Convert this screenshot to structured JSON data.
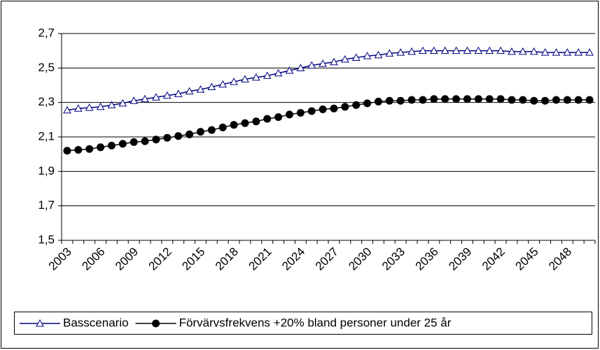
{
  "chart_data": {
    "type": "line",
    "categories": [
      "2003",
      null,
      null,
      "2006",
      null,
      null,
      "2009",
      null,
      null,
      "2012",
      null,
      null,
      "2015",
      null,
      null,
      "2018",
      null,
      null,
      "2021",
      null,
      null,
      "2024",
      null,
      null,
      "2027",
      null,
      null,
      "2030",
      null,
      null,
      "2033",
      null,
      null,
      "2036",
      null,
      null,
      "2039",
      null,
      null,
      "2042",
      null,
      null,
      "2045",
      null,
      null,
      "2048",
      null,
      null
    ],
    "series": [
      {
        "name": "Basscenario",
        "color": "#000080",
        "marker": "triangle",
        "values": [
          2.255,
          2.265,
          2.27,
          2.275,
          2.285,
          2.295,
          2.31,
          2.32,
          2.33,
          2.34,
          2.35,
          2.365,
          2.375,
          2.39,
          2.405,
          2.42,
          2.435,
          2.445,
          2.455,
          2.47,
          2.485,
          2.5,
          2.515,
          2.525,
          2.535,
          2.55,
          2.56,
          2.57,
          2.575,
          2.585,
          2.59,
          2.595,
          2.6,
          2.6,
          2.6,
          2.6,
          2.6,
          2.6,
          2.6,
          2.6,
          2.595,
          2.595,
          2.595,
          2.59,
          2.59,
          2.59,
          2.59,
          2.59
        ]
      },
      {
        "name": "Förvärvsfrekvens +20% bland personer under 25 år",
        "color": "#000000",
        "marker": "circle",
        "values": [
          2.02,
          2.025,
          2.03,
          2.04,
          2.05,
          2.06,
          2.07,
          2.075,
          2.085,
          2.095,
          2.105,
          2.115,
          2.13,
          2.14,
          2.155,
          2.17,
          2.18,
          2.19,
          2.205,
          2.215,
          2.23,
          2.24,
          2.25,
          2.26,
          2.265,
          2.275,
          2.285,
          2.295,
          2.305,
          2.31,
          2.31,
          2.315,
          2.315,
          2.32,
          2.32,
          2.32,
          2.32,
          2.32,
          2.32,
          2.32,
          2.315,
          2.315,
          2.31,
          2.31,
          2.315,
          2.315,
          2.315,
          2.315
        ]
      }
    ],
    "ylim": [
      1.5,
      2.7
    ],
    "yticks": [
      {
        "value": 1.5,
        "label": "1,5"
      },
      {
        "value": 1.7,
        "label": "1,7"
      },
      {
        "value": 1.9,
        "label": "1,9"
      },
      {
        "value": 2.1,
        "label": "2,1"
      },
      {
        "value": 2.3,
        "label": "2,3"
      },
      {
        "value": 2.5,
        "label": "2,5"
      },
      {
        "value": 2.7,
        "label": "2,7"
      }
    ],
    "grid": true,
    "legend": "bottom"
  }
}
